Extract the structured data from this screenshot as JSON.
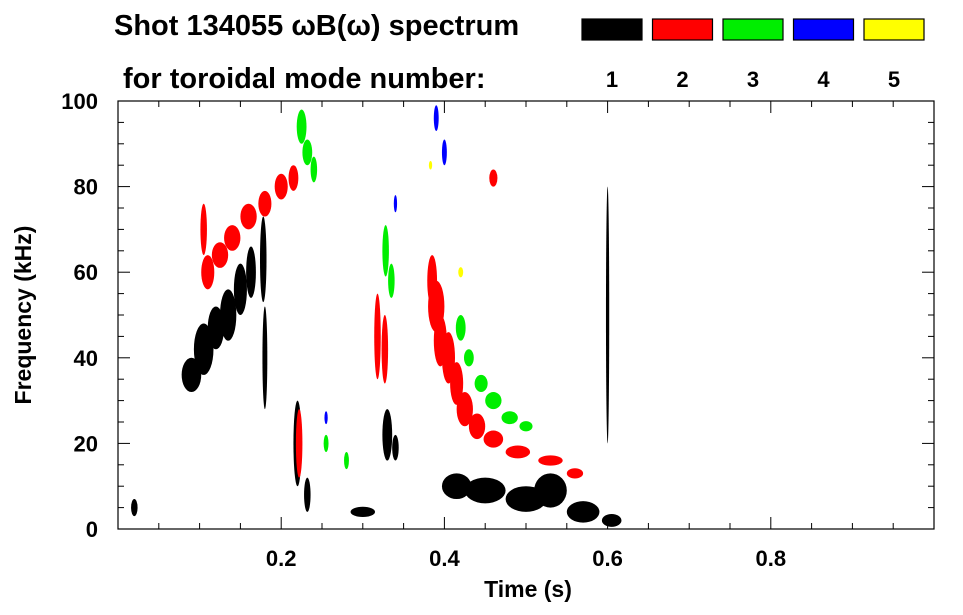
{
  "chart_data": {
    "type": "heatmap",
    "title_line1": "Shot 134055 ωB(ω) spectrum",
    "title_line2": "for toroidal mode number:",
    "xlabel": "Time (s)",
    "ylabel": "Frequency (kHz)",
    "xlim": [
      0.0,
      1.0
    ],
    "ylim": [
      0,
      100
    ],
    "x_ticks": [
      0.2,
      0.4,
      0.6,
      0.8
    ],
    "x_tick_labels": [
      "0.2",
      "0.4",
      "0.6",
      "0.8"
    ],
    "y_ticks": [
      0,
      20,
      40,
      60,
      80,
      100
    ],
    "y_tick_labels": [
      "0",
      "20",
      "40",
      "60",
      "80",
      "100"
    ],
    "x_minor_step": 0.05,
    "y_minor_step": 5,
    "grid": false,
    "legend_position": "top-right",
    "legend": [
      {
        "mode": "1",
        "color": "#000000"
      },
      {
        "mode": "2",
        "color": "#ff0000"
      },
      {
        "mode": "3",
        "color": "#00ee00"
      },
      {
        "mode": "4",
        "color": "#0000ff"
      },
      {
        "mode": "5",
        "color": "#ffff00"
      }
    ],
    "series": [
      {
        "mode": "1",
        "color": "#000000",
        "blobs": [
          {
            "x": 0.09,
            "y": 36,
            "dx": 0.012,
            "dy": 4
          },
          {
            "x": 0.105,
            "y": 42,
            "dx": 0.012,
            "dy": 6
          },
          {
            "x": 0.12,
            "y": 47,
            "dx": 0.01,
            "dy": 5
          },
          {
            "x": 0.135,
            "y": 50,
            "dx": 0.01,
            "dy": 6
          },
          {
            "x": 0.15,
            "y": 56,
            "dx": 0.008,
            "dy": 6
          },
          {
            "x": 0.163,
            "y": 60,
            "dx": 0.006,
            "dy": 6
          },
          {
            "x": 0.178,
            "y": 63,
            "dx": 0.004,
            "dy": 10
          },
          {
            "x": 0.18,
            "y": 40,
            "dx": 0.003,
            "dy": 12
          },
          {
            "x": 0.22,
            "y": 20,
            "dx": 0.005,
            "dy": 10
          },
          {
            "x": 0.232,
            "y": 8,
            "dx": 0.004,
            "dy": 4
          },
          {
            "x": 0.33,
            "y": 22,
            "dx": 0.006,
            "dy": 6
          },
          {
            "x": 0.34,
            "y": 19,
            "dx": 0.004,
            "dy": 3
          },
          {
            "x": 0.3,
            "y": 4,
            "dx": 0.015,
            "dy": 1.2
          },
          {
            "x": 0.415,
            "y": 10,
            "dx": 0.018,
            "dy": 3
          },
          {
            "x": 0.45,
            "y": 9,
            "dx": 0.025,
            "dy": 3
          },
          {
            "x": 0.5,
            "y": 7,
            "dx": 0.025,
            "dy": 3
          },
          {
            "x": 0.53,
            "y": 9,
            "dx": 0.02,
            "dy": 4
          },
          {
            "x": 0.57,
            "y": 4,
            "dx": 0.02,
            "dy": 2.5
          },
          {
            "x": 0.605,
            "y": 2,
            "dx": 0.012,
            "dy": 1.5
          },
          {
            "x": 0.6,
            "y": 50,
            "dx": 0.002,
            "dy": 30
          },
          {
            "x": 0.02,
            "y": 5,
            "dx": 0.004,
            "dy": 2
          }
        ]
      },
      {
        "mode": "2",
        "color": "#ff0000",
        "blobs": [
          {
            "x": 0.11,
            "y": 60,
            "dx": 0.008,
            "dy": 4
          },
          {
            "x": 0.125,
            "y": 64,
            "dx": 0.01,
            "dy": 3
          },
          {
            "x": 0.14,
            "y": 68,
            "dx": 0.01,
            "dy": 3
          },
          {
            "x": 0.16,
            "y": 73,
            "dx": 0.01,
            "dy": 3
          },
          {
            "x": 0.18,
            "y": 76,
            "dx": 0.008,
            "dy": 3
          },
          {
            "x": 0.2,
            "y": 80,
            "dx": 0.008,
            "dy": 3
          },
          {
            "x": 0.215,
            "y": 82,
            "dx": 0.006,
            "dy": 3
          },
          {
            "x": 0.105,
            "y": 70,
            "dx": 0.004,
            "dy": 6
          },
          {
            "x": 0.222,
            "y": 20,
            "dx": 0.004,
            "dy": 8
          },
          {
            "x": 0.318,
            "y": 45,
            "dx": 0.004,
            "dy": 10
          },
          {
            "x": 0.327,
            "y": 42,
            "dx": 0.004,
            "dy": 8
          },
          {
            "x": 0.385,
            "y": 58,
            "dx": 0.006,
            "dy": 6
          },
          {
            "x": 0.39,
            "y": 52,
            "dx": 0.01,
            "dy": 6
          },
          {
            "x": 0.395,
            "y": 44,
            "dx": 0.008,
            "dy": 6
          },
          {
            "x": 0.405,
            "y": 40,
            "dx": 0.008,
            "dy": 6
          },
          {
            "x": 0.415,
            "y": 34,
            "dx": 0.008,
            "dy": 5
          },
          {
            "x": 0.425,
            "y": 28,
            "dx": 0.01,
            "dy": 4
          },
          {
            "x": 0.44,
            "y": 24,
            "dx": 0.01,
            "dy": 3
          },
          {
            "x": 0.46,
            "y": 21,
            "dx": 0.012,
            "dy": 2
          },
          {
            "x": 0.49,
            "y": 18,
            "dx": 0.015,
            "dy": 1.5
          },
          {
            "x": 0.53,
            "y": 16,
            "dx": 0.015,
            "dy": 1.2
          },
          {
            "x": 0.56,
            "y": 13,
            "dx": 0.01,
            "dy": 1.2
          },
          {
            "x": 0.46,
            "y": 82,
            "dx": 0.005,
            "dy": 2
          }
        ]
      },
      {
        "mode": "3",
        "color": "#00ee00",
        "blobs": [
          {
            "x": 0.225,
            "y": 94,
            "dx": 0.006,
            "dy": 4
          },
          {
            "x": 0.232,
            "y": 88,
            "dx": 0.006,
            "dy": 3
          },
          {
            "x": 0.24,
            "y": 84,
            "dx": 0.004,
            "dy": 3
          },
          {
            "x": 0.328,
            "y": 65,
            "dx": 0.004,
            "dy": 6
          },
          {
            "x": 0.335,
            "y": 58,
            "dx": 0.004,
            "dy": 4
          },
          {
            "x": 0.42,
            "y": 47,
            "dx": 0.006,
            "dy": 3
          },
          {
            "x": 0.43,
            "y": 40,
            "dx": 0.006,
            "dy": 2
          },
          {
            "x": 0.445,
            "y": 34,
            "dx": 0.008,
            "dy": 2
          },
          {
            "x": 0.46,
            "y": 30,
            "dx": 0.01,
            "dy": 2
          },
          {
            "x": 0.48,
            "y": 26,
            "dx": 0.01,
            "dy": 1.5
          },
          {
            "x": 0.5,
            "y": 24,
            "dx": 0.008,
            "dy": 1.2
          },
          {
            "x": 0.255,
            "y": 20,
            "dx": 0.003,
            "dy": 2
          },
          {
            "x": 0.28,
            "y": 16,
            "dx": 0.003,
            "dy": 2
          }
        ]
      },
      {
        "mode": "4",
        "color": "#0000ff",
        "blobs": [
          {
            "x": 0.39,
            "y": 96,
            "dx": 0.003,
            "dy": 3
          },
          {
            "x": 0.4,
            "y": 88,
            "dx": 0.003,
            "dy": 3
          },
          {
            "x": 0.34,
            "y": 76,
            "dx": 0.002,
            "dy": 2
          },
          {
            "x": 0.255,
            "y": 26,
            "dx": 0.002,
            "dy": 1.5
          }
        ]
      },
      {
        "mode": "5",
        "color": "#ffff00",
        "blobs": [
          {
            "x": 0.42,
            "y": 60,
            "dx": 0.003,
            "dy": 1.2
          },
          {
            "x": 0.383,
            "y": 85,
            "dx": 0.002,
            "dy": 1
          }
        ]
      }
    ]
  }
}
